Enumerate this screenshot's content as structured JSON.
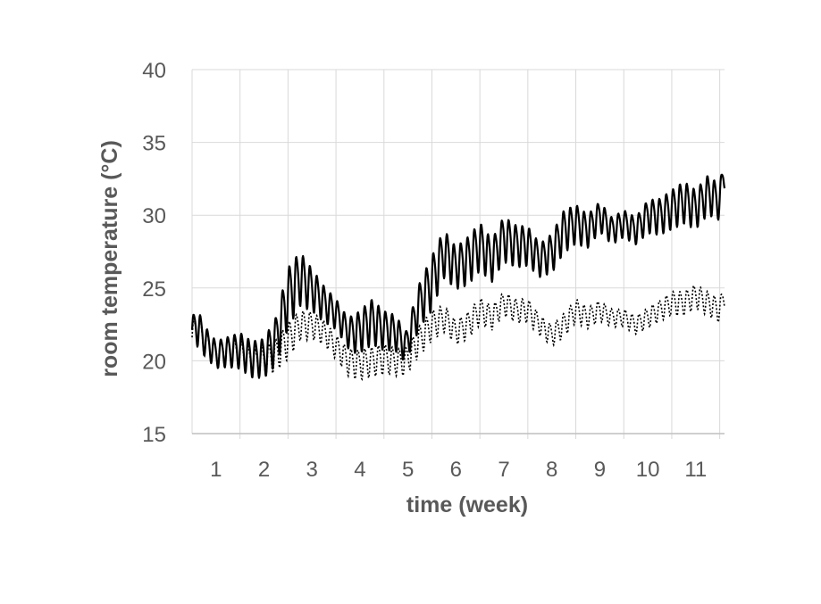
{
  "chart_data": {
    "type": "line",
    "xlabel": "time (week)",
    "ylabel": "room temperature (°C)",
    "xlim": [
      0.5,
      11.6
    ],
    "ylim": [
      15,
      40
    ],
    "xticks": [
      1,
      2,
      3,
      4,
      5,
      6,
      7,
      8,
      9,
      10,
      11
    ],
    "yticks": [
      15,
      20,
      25,
      30,
      35,
      40
    ],
    "grid": true,
    "legend": "none",
    "colors": {
      "series": "#000000",
      "grid": "#d9d9d9",
      "text": "#595959"
    },
    "series": [
      {
        "style": "solid",
        "x": [
          0.5,
          0.6,
          0.75,
          1.0,
          1.25,
          1.5,
          1.75,
          2.0,
          2.25,
          2.5,
          2.75,
          3.0,
          3.25,
          3.5,
          3.75,
          3.95,
          4.25,
          4.5,
          4.75,
          4.95,
          5.25,
          5.5,
          5.75,
          6.0,
          6.25,
          6.5,
          6.75,
          7.0,
          7.25,
          7.5,
          7.75,
          8.0,
          8.25,
          8.5,
          8.75,
          9.0,
          9.25,
          9.5,
          9.75,
          10.0,
          10.25,
          10.5,
          10.75,
          11.0,
          11.25,
          11.5,
          11.6
        ],
        "y": [
          22.0,
          22.5,
          21.5,
          20.5,
          20.7,
          20.8,
          20.2,
          20.3,
          21.5,
          24.5,
          25.8,
          25.0,
          24.0,
          23.3,
          22.0,
          22.0,
          22.8,
          22.2,
          22.0,
          21.0,
          24.0,
          25.5,
          27.5,
          26.5,
          27.0,
          28.0,
          27.0,
          28.5,
          28.0,
          28.0,
          27.0,
          27.5,
          29.0,
          29.5,
          29.0,
          30.0,
          29.0,
          29.5,
          29.0,
          30.0,
          30.0,
          30.5,
          31.0,
          30.5,
          31.5,
          31.0,
          33.0
        ],
        "amplitude": [
          1.0,
          1.3,
          1.0,
          0.9,
          1.0,
          1.2,
          1.2,
          1.3,
          1.6,
          2.0,
          1.8,
          1.4,
          1.2,
          1.0,
          1.0,
          1.4,
          1.5,
          1.3,
          1.2,
          1.0,
          1.5,
          1.8,
          1.6,
          1.4,
          1.6,
          1.6,
          1.4,
          1.5,
          1.4,
          1.3,
          1.1,
          1.3,
          1.4,
          1.3,
          1.1,
          1.0,
          0.9,
          0.9,
          0.9,
          1.1,
          1.2,
          1.3,
          1.4,
          1.3,
          1.3,
          1.2,
          1.2
        ]
      },
      {
        "style": "dotted",
        "x": [
          0.5,
          0.6,
          0.75,
          1.0,
          1.25,
          1.5,
          1.75,
          2.0,
          2.25,
          2.5,
          2.75,
          3.0,
          3.25,
          3.5,
          3.75,
          3.95,
          4.25,
          4.5,
          4.75,
          4.95,
          5.25,
          5.5,
          5.75,
          6.0,
          6.25,
          6.5,
          6.75,
          7.0,
          7.25,
          7.5,
          7.75,
          8.0,
          8.25,
          8.5,
          8.75,
          9.0,
          9.25,
          9.5,
          9.75,
          10.0,
          10.25,
          10.5,
          10.75,
          11.0,
          11.25,
          11.5,
          11.6
        ],
        "y": [
          21.5,
          22.5,
          21.3,
          20.6,
          20.8,
          20.5,
          20.0,
          20.0,
          20.5,
          21.5,
          22.5,
          22.5,
          22.0,
          21.0,
          20.0,
          19.8,
          20.0,
          20.2,
          20.0,
          20.0,
          21.5,
          22.5,
          23.0,
          22.0,
          22.5,
          23.5,
          23.0,
          24.0,
          23.5,
          23.5,
          22.5,
          21.8,
          22.5,
          23.5,
          23.0,
          23.5,
          23.0,
          23.0,
          22.5,
          23.0,
          23.5,
          24.0,
          24.0,
          24.5,
          24.0,
          23.5,
          24.5
        ],
        "amplitude": [
          0.9,
          1.2,
          0.9,
          0.7,
          0.8,
          0.9,
          0.9,
          1.0,
          1.1,
          1.2,
          1.0,
          0.9,
          0.8,
          0.8,
          0.9,
          1.0,
          1.0,
          1.0,
          0.9,
          0.9,
          1.0,
          1.0,
          0.9,
          0.8,
          0.9,
          0.9,
          0.8,
          0.8,
          0.8,
          0.8,
          0.7,
          0.7,
          0.8,
          0.8,
          0.7,
          0.7,
          0.6,
          0.6,
          0.6,
          0.7,
          0.7,
          0.8,
          0.8,
          0.8,
          0.8,
          0.8,
          0.8
        ]
      }
    ]
  }
}
